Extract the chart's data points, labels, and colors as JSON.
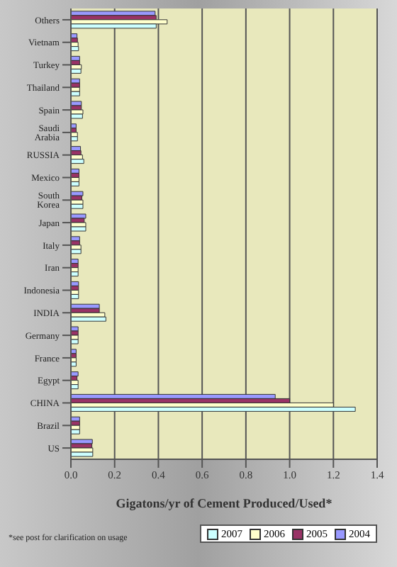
{
  "chart_data": {
    "type": "bar",
    "orientation": "horizontal",
    "xlabel": "Gigatons/yr of Cement Produced/Used*",
    "categories": [
      "Others",
      "Vietnam",
      "Turkey",
      "Thailand",
      "Spain",
      "Saudi Arabia",
      "RUSSIA",
      "Mexico",
      "South Korea",
      "Japan",
      "Italy",
      "Iran",
      "Indonesia",
      "INDIA",
      "Germany",
      "France",
      "Egypt",
      "CHINA",
      "Brazil",
      "US"
    ],
    "series": [
      {
        "name": "2007",
        "color": "#ccffff",
        "values": [
          0.39,
          0.035,
          0.046,
          0.04,
          0.053,
          0.03,
          0.059,
          0.037,
          0.055,
          0.068,
          0.046,
          0.033,
          0.035,
          0.16,
          0.033,
          0.024,
          0.033,
          1.3,
          0.04,
          0.1
        ]
      },
      {
        "name": "2006",
        "color": "#ffffcc",
        "values": [
          0.44,
          0.033,
          0.048,
          0.04,
          0.055,
          0.03,
          0.053,
          0.037,
          0.055,
          0.068,
          0.046,
          0.033,
          0.035,
          0.155,
          0.033,
          0.024,
          0.033,
          1.2,
          0.04,
          0.1
        ]
      },
      {
        "name": "2005",
        "color": "#993366",
        "values": [
          0.39,
          0.03,
          0.04,
          0.04,
          0.048,
          0.024,
          0.046,
          0.037,
          0.05,
          0.061,
          0.04,
          0.033,
          0.035,
          0.13,
          0.033,
          0.024,
          0.028,
          1.0,
          0.04,
          0.096
        ]
      },
      {
        "name": "2004",
        "color": "#9999ff",
        "values": [
          0.385,
          0.028,
          0.04,
          0.04,
          0.048,
          0.024,
          0.044,
          0.037,
          0.055,
          0.068,
          0.04,
          0.033,
          0.035,
          0.13,
          0.033,
          0.024,
          0.033,
          0.934,
          0.04,
          0.098
        ]
      }
    ],
    "xlim": [
      0,
      1.4
    ],
    "xticks": [
      {
        "value": 0,
        "label": "0.0"
      },
      0.2,
      0.4,
      0.6,
      0.8,
      {
        "value": 1,
        "label": "1.0"
      },
      1.2,
      1.4
    ],
    "grid": "x",
    "legend": "bottom right",
    "annotations": [
      "*see post for clarification on usage"
    ]
  }
}
